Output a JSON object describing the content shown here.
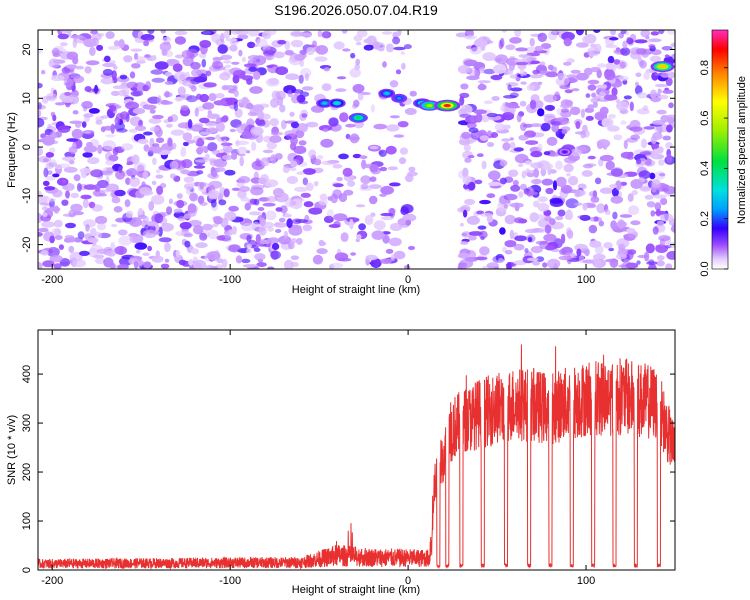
{
  "title": "S196.2026.050.07.04.R19",
  "colors": {
    "snr_line": "#e83030",
    "blob": "#8a2be2",
    "background": "#ffffff"
  },
  "chart_data": [
    {
      "type": "heatmap",
      "name": "spectrogram",
      "xlabel": "Height of straight line (km)",
      "ylabel": "Frequency (Hz)",
      "xlim": [
        -208,
        150
      ],
      "ylim": [
        -25,
        24
      ],
      "xticks": [
        -200,
        -100,
        0,
        100
      ],
      "yticks": [
        20,
        10,
        0,
        -10,
        -20
      ],
      "colorbar": {
        "label": "Normalized spectral amplitude",
        "range": [
          0,
          0.95
        ],
        "ticks": [
          0.0,
          0.2,
          0.4,
          0.6,
          0.8
        ]
      },
      "gap_x_ranges": [
        [
          3,
          30
        ]
      ],
      "strong_features": [
        {
          "x": -47,
          "y": 9,
          "amp": 0.3
        },
        {
          "x": -40,
          "y": 9,
          "amp": 0.35
        },
        {
          "x": -28,
          "y": 6,
          "amp": 0.45
        },
        {
          "x": -12,
          "y": 11,
          "amp": 0.3
        },
        {
          "x": -5,
          "y": 10,
          "amp": 0.25
        },
        {
          "x": 8,
          "y": 9,
          "amp": 0.4
        },
        {
          "x": 12,
          "y": 8.5,
          "amp": 0.6
        },
        {
          "x": 22,
          "y": 8.5,
          "amp": 0.9
        },
        {
          "x": 143,
          "y": 16.5,
          "amp": 0.75
        },
        {
          "x": 88,
          "y": -1,
          "amp": 0.15
        }
      ]
    },
    {
      "type": "line",
      "name": "snr",
      "xlabel": "Height of straight line (km)",
      "ylabel": "SNR (10 * v/v)",
      "xlim": [
        -208,
        150
      ],
      "ylim": [
        0,
        490
      ],
      "xticks": [
        -200,
        -100,
        0,
        100
      ],
      "yticks": [
        0,
        100,
        200,
        300,
        400
      ],
      "profile": [
        {
          "x": -208,
          "y": 15
        },
        {
          "x": -60,
          "y": 18
        },
        {
          "x": -40,
          "y": 35
        },
        {
          "x": -20,
          "y": 30
        },
        {
          "x": 12,
          "y": 28
        },
        {
          "x": 15,
          "y": 180
        },
        {
          "x": 25,
          "y": 290
        },
        {
          "x": 40,
          "y": 320
        },
        {
          "x": 60,
          "y": 340
        },
        {
          "x": 80,
          "y": 330
        },
        {
          "x": 100,
          "y": 350
        },
        {
          "x": 120,
          "y": 355
        },
        {
          "x": 140,
          "y": 340
        },
        {
          "x": 150,
          "y": 240
        }
      ],
      "dropouts_x": [
        17,
        22,
        30,
        42,
        55,
        68,
        80,
        92,
        104,
        116,
        128,
        141
      ]
    }
  ]
}
